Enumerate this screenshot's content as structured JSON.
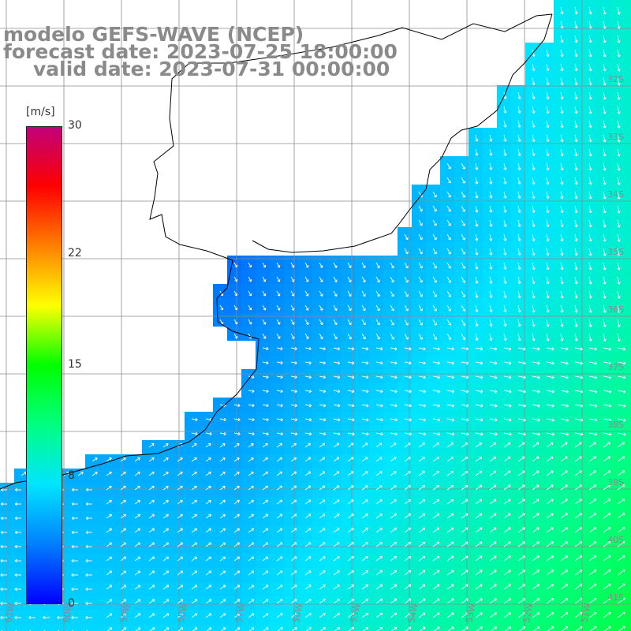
{
  "title": {
    "model": "modelo GEFS-WAVE (NCEP)",
    "forecast": "forecast date: 2023-07-25 18:00:00",
    "valid": "valid date: 2023-07-31 00:00:00"
  },
  "colorbar": {
    "unit": "[m/s]",
    "range": [
      0,
      30
    ],
    "tick_labels": [
      "30",
      "22",
      "15",
      "8",
      "0"
    ],
    "tick_values": [
      30,
      22,
      15,
      8,
      0
    ],
    "colors": [
      "#0000ff",
      "#0080ff",
      "#00e5ff",
      "#00ff80",
      "#00ff00",
      "#ffff00",
      "#ff8000",
      "#ff0000",
      "#c0007a"
    ]
  },
  "map": {
    "lon_labels": [
      "61W",
      "60W",
      "59W",
      "58W",
      "57W",
      "56W",
      "55W",
      "54W",
      "53W",
      "52W",
      "51W"
    ],
    "lat_labels": [
      "32S",
      "33S",
      "34S",
      "35S",
      "36S",
      "37S",
      "38S",
      "39S",
      "40S",
      "41S"
    ],
    "land_color": "#ffffff",
    "grid_color": "#8c8c8c",
    "coast_color": "#000000",
    "vector_color": "#ffffff",
    "field": "wind speed and direction"
  }
}
